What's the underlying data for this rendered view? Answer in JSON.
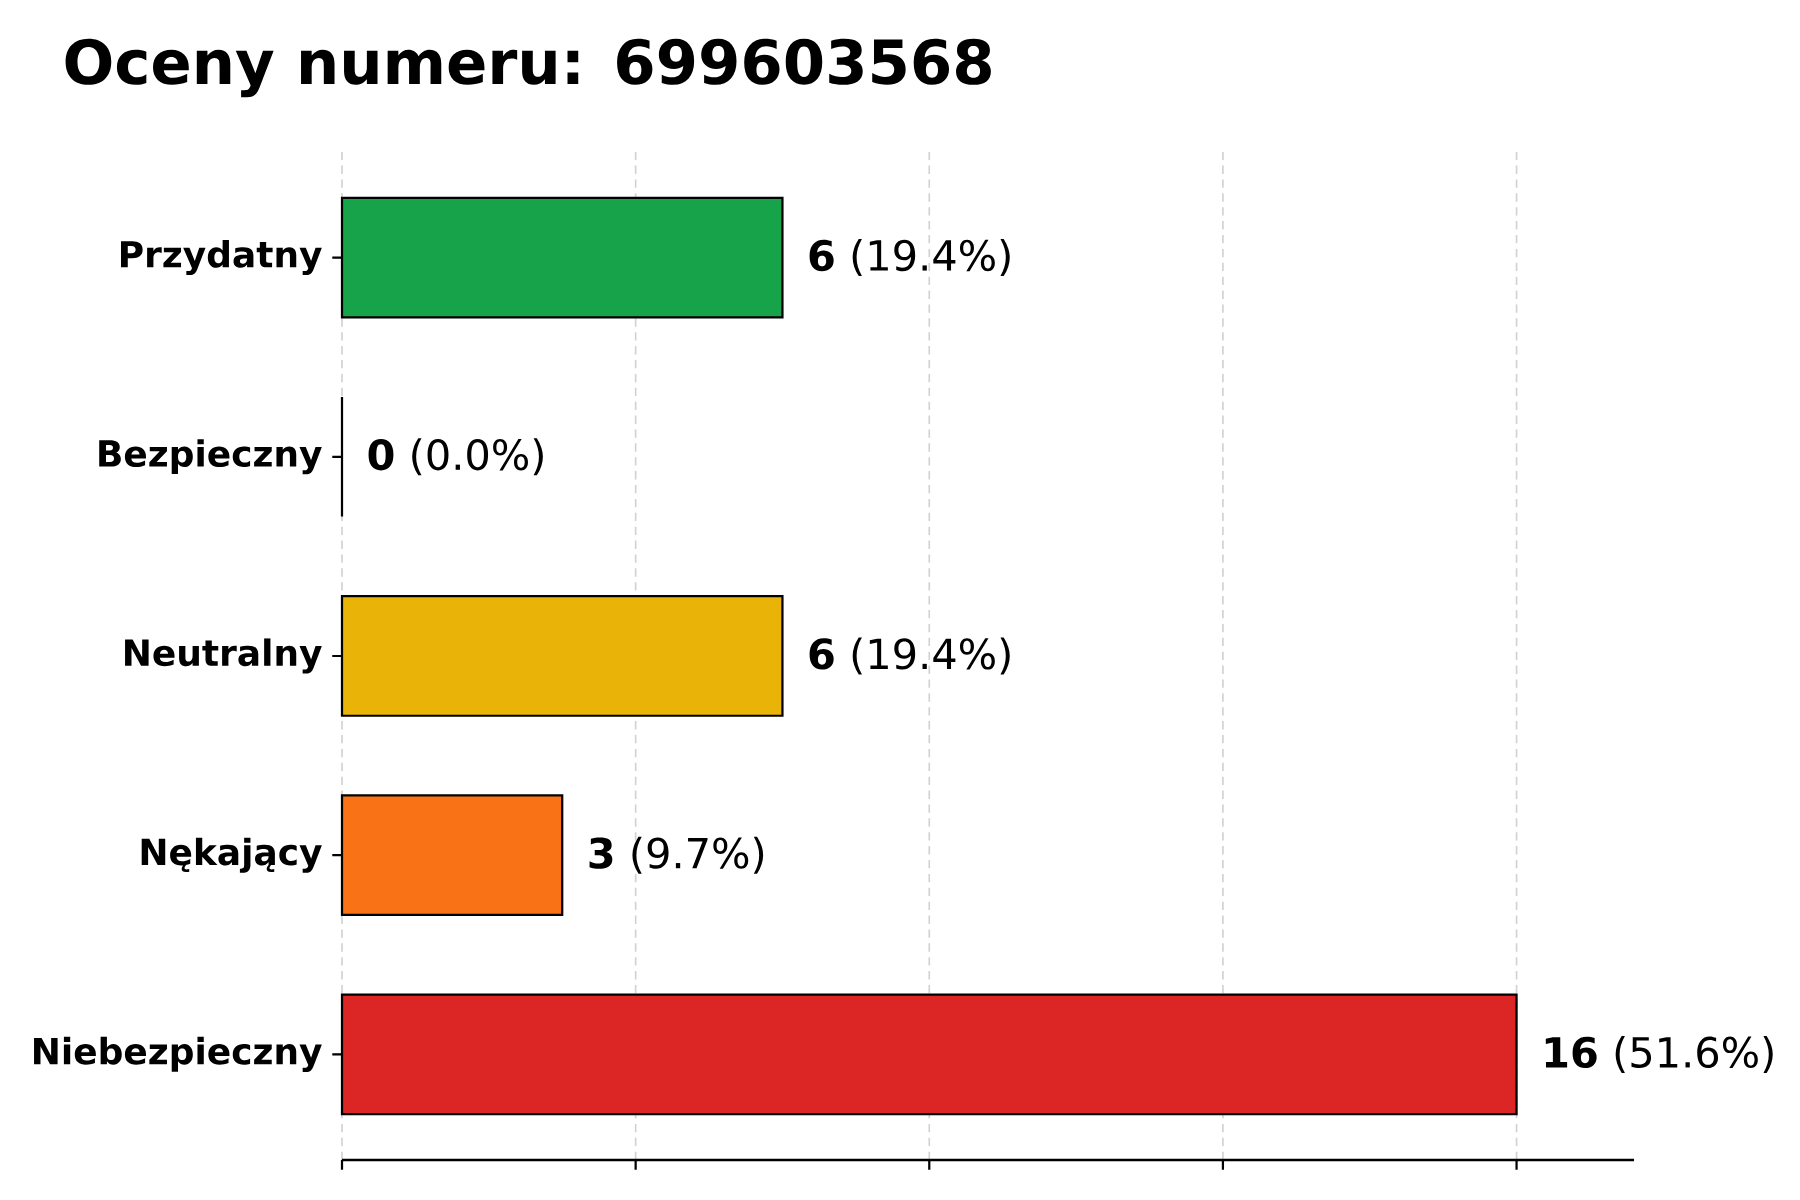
{
  "chart_data": {
    "type": "bar",
    "orientation": "horizontal",
    "title": "Oceny numeru: 699603568",
    "categories": [
      "Przydatny",
      "Bezpieczny",
      "Neutralny",
      "Nękający",
      "Niebezpieczny"
    ],
    "values": [
      6,
      0,
      6,
      3,
      16
    ],
    "colors": [
      "#16a34a",
      "#2563eb",
      "#eab308",
      "#f97316",
      "#dc2626"
    ],
    "value_labels": [
      "**6** (19.4%)",
      "**0** (0.0%)",
      "**6** (19.4%)",
      "**3** (9.7%)",
      "**16** (51.6%)"
    ],
    "xlim": [
      0,
      17.6
    ],
    "xticks": [
      {
        "value": 0,
        "label": null
      },
      {
        "value": 4,
        "label": null
      },
      {
        "value": 8,
        "label": null
      },
      {
        "value": 12,
        "label": null
      },
      {
        "value": 16,
        "label": null
      }
    ],
    "grid": "x",
    "tick_labels": "y"
  }
}
